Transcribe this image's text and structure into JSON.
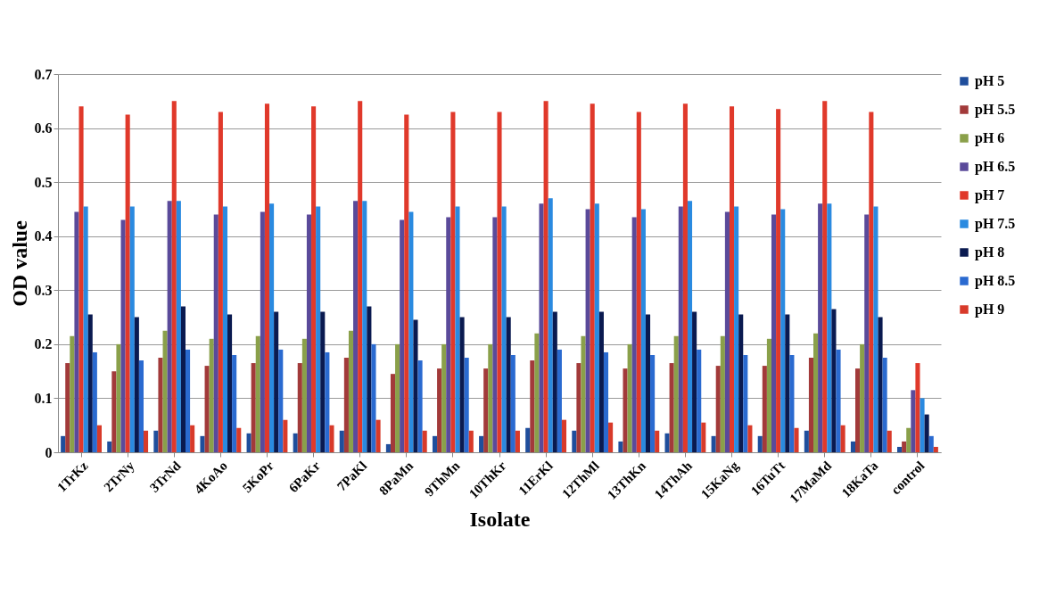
{
  "chart_data": {
    "type": "bar",
    "xlabel": "Isolate",
    "ylabel": "OD value",
    "categories": [
      "1TrKz",
      "2TrNy",
      "3TrNd",
      "4KoAo",
      "5KoPr",
      "6PaKr",
      "7PaKl",
      "8PaMn",
      "9ThMn",
      "10ThKr",
      "11ErKl",
      "12ThMl",
      "13ThKn",
      "14ThAh",
      "15KaNg",
      "16TuTt",
      "17MaMd",
      "18KaTa",
      "control"
    ],
    "series": [
      {
        "name": "pH 5",
        "color": "#1f4e9c",
        "values": [
          0.03,
          0.02,
          0.04,
          0.03,
          0.035,
          0.035,
          0.04,
          0.015,
          0.03,
          0.03,
          0.045,
          0.04,
          0.02,
          0.035,
          0.03,
          0.03,
          0.04,
          0.02,
          0.01
        ]
      },
      {
        "name": "pH 5.5",
        "color": "#a23a3a",
        "values": [
          0.165,
          0.15,
          0.175,
          0.16,
          0.165,
          0.165,
          0.175,
          0.145,
          0.155,
          0.155,
          0.17,
          0.165,
          0.155,
          0.165,
          0.16,
          0.16,
          0.175,
          0.155,
          0.02
        ]
      },
      {
        "name": "pH 6",
        "color": "#8aa04a",
        "values": [
          0.215,
          0.2,
          0.225,
          0.21,
          0.215,
          0.21,
          0.225,
          0.2,
          0.2,
          0.2,
          0.22,
          0.215,
          0.2,
          0.215,
          0.215,
          0.21,
          0.22,
          0.2,
          0.045
        ]
      },
      {
        "name": "pH 6.5",
        "color": "#5a4a9a",
        "values": [
          0.445,
          0.43,
          0.465,
          0.44,
          0.445,
          0.44,
          0.465,
          0.43,
          0.435,
          0.435,
          0.46,
          0.45,
          0.435,
          0.455,
          0.445,
          0.44,
          0.46,
          0.44,
          0.115
        ]
      },
      {
        "name": "pH 7",
        "color": "#e0392b",
        "values": [
          0.64,
          0.625,
          0.65,
          0.63,
          0.645,
          0.64,
          0.65,
          0.625,
          0.63,
          0.63,
          0.65,
          0.645,
          0.63,
          0.645,
          0.64,
          0.635,
          0.65,
          0.63,
          0.165
        ]
      },
      {
        "name": "pH 7.5",
        "color": "#2a8ae0",
        "values": [
          0.455,
          0.455,
          0.465,
          0.455,
          0.46,
          0.455,
          0.465,
          0.445,
          0.455,
          0.455,
          0.47,
          0.46,
          0.45,
          0.465,
          0.455,
          0.45,
          0.46,
          0.455,
          0.1
        ]
      },
      {
        "name": "pH 8",
        "color": "#0a1a50",
        "values": [
          0.255,
          0.25,
          0.27,
          0.255,
          0.26,
          0.26,
          0.27,
          0.245,
          0.25,
          0.25,
          0.26,
          0.26,
          0.255,
          0.26,
          0.255,
          0.255,
          0.265,
          0.25,
          0.07
        ]
      },
      {
        "name": "pH 8.5",
        "color": "#2a6ad0",
        "values": [
          0.185,
          0.17,
          0.19,
          0.18,
          0.19,
          0.185,
          0.2,
          0.17,
          0.175,
          0.18,
          0.19,
          0.185,
          0.18,
          0.19,
          0.18,
          0.18,
          0.19,
          0.175,
          0.03
        ]
      },
      {
        "name": "pH 9",
        "color": "#d83a2a",
        "values": [
          0.05,
          0.04,
          0.05,
          0.045,
          0.06,
          0.05,
          0.06,
          0.04,
          0.04,
          0.04,
          0.06,
          0.055,
          0.04,
          0.055,
          0.05,
          0.045,
          0.05,
          0.04,
          0.01
        ]
      }
    ],
    "ylim": [
      0,
      0.7
    ],
    "yticks": [
      0,
      0.1,
      0.2,
      0.3,
      0.4,
      0.5,
      0.6,
      0.7
    ],
    "grid": "y",
    "legend": "right"
  }
}
